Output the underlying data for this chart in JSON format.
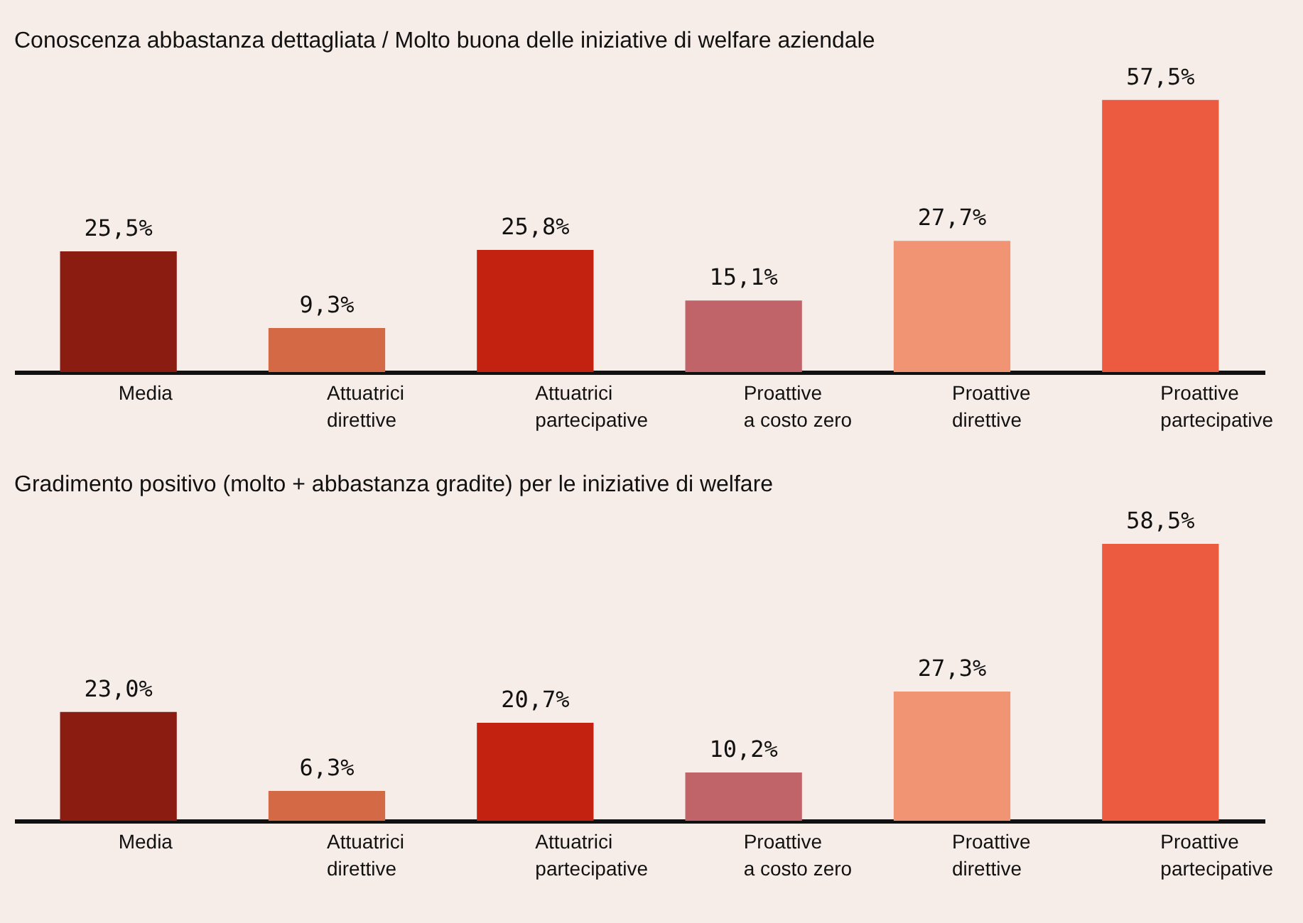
{
  "chart_data": [
    {
      "type": "bar",
      "title": "Conoscenza abbastanza dettagliata / Molto buona delle iniziative di welfare aziendale",
      "categories": [
        "Media",
        "Attuatrici\ndirettive",
        "Attuatrici\npartecipative",
        "Proattive\na costo zero",
        "Proattive\ndirettive",
        "Proattive\npartecipative"
      ],
      "values": [
        25.5,
        9.3,
        25.8,
        15.1,
        27.7,
        57.5
      ],
      "value_labels": [
        "25,5%",
        "9,3%",
        "25,8%",
        "15,1%",
        "27,7%",
        "57,5%"
      ],
      "colors": [
        "#8b1c12",
        "#d46a45",
        "#c32211",
        "#c0646a",
        "#f19474",
        "#ec5b40"
      ]
    },
    {
      "type": "bar",
      "title": "Gradimento positivo (molto + abbastanza gradite) per le iniziative di welfare",
      "categories": [
        "Media",
        "Attuatrici\ndirettive",
        "Attuatrici\npartecipative",
        "Proattive\na costo zero",
        "Proattive\ndirettive",
        "Proattive\npartecipative"
      ],
      "values": [
        23.0,
        6.3,
        20.7,
        10.2,
        27.3,
        58.5
      ],
      "value_labels": [
        "23,0%",
        "6,3%",
        "20,7%",
        "10,2%",
        "27,3%",
        "58,5%"
      ],
      "colors": [
        "#8b1c12",
        "#d46a45",
        "#c32211",
        "#c0646a",
        "#f19474",
        "#ec5b40"
      ]
    }
  ]
}
